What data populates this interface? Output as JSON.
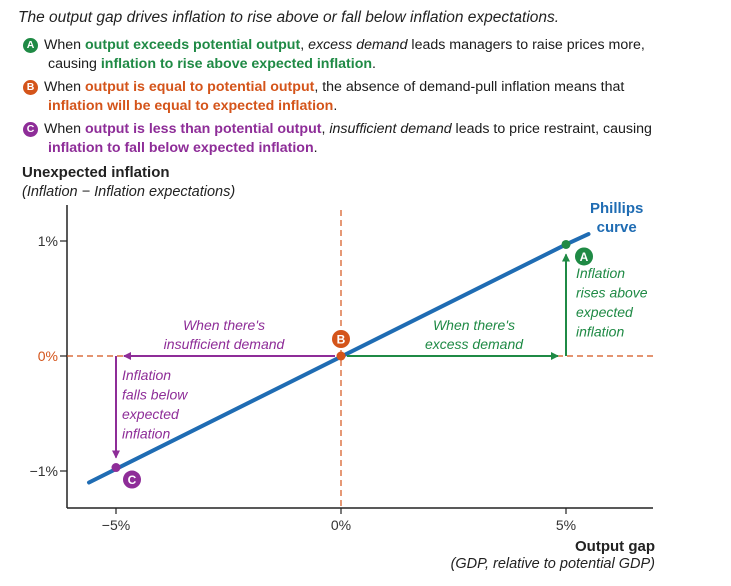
{
  "title": "The output gap drives inflation to rise above or fall below inflation expectations.",
  "explanations": [
    {
      "badge": "A",
      "p1": "When ",
      "h1": "output exceeds potential output",
      "p2": ", ",
      "e1": "excess demand",
      "p3": " leads managers to raise prices more,",
      "p4": "causing ",
      "h2": "inflation to rise above expected inflation",
      "p5": "."
    },
    {
      "badge": "B",
      "p1": "When ",
      "h1": "output is equal to potential output",
      "p2": ", the absence of demand-pull inflation means that",
      "h2": "inflation will be equal to expected inflation",
      "p3": "."
    },
    {
      "badge": "C",
      "p1": "When ",
      "h1": "output is less than potential output",
      "p2": ", ",
      "e1": "insufficient demand",
      "p3": " leads to price restraint, causing",
      "h2": "inflation to fall below expected inflation",
      "p4": "."
    }
  ],
  "colors": {
    "green": "#1f8a45",
    "orange": "#d4541a",
    "purple": "#8e2d98",
    "curve": "#1f6cb3",
    "axis": "#222222"
  },
  "chart_data": {
    "type": "line",
    "ylabel": "Unexpected inflation",
    "ylabel_sub": "(Inflation − Inflation expectations)",
    "xlabel": "Output gap",
    "xlabel_sub": "(GDP, relative to potential GDP)",
    "x_ticks": [
      "−5%",
      "0%",
      "5%"
    ],
    "y_ticks": [
      "1%",
      "0%",
      "−1%"
    ],
    "xlim": [
      -6.5,
      7
    ],
    "ylim": [
      -1.3,
      1.45
    ],
    "series": [
      {
        "name": "Phillips curve",
        "x": [
          -5.6,
          5.0,
          5.5
        ],
        "y": [
          -1.1,
          0.97,
          1.06
        ]
      }
    ],
    "curve_label": [
      "Phillips",
      "curve"
    ],
    "points": [
      {
        "label": "A",
        "x": 5,
        "y": 0.97
      },
      {
        "label": "B",
        "x": 0,
        "y": 0
      },
      {
        "label": "C",
        "x": -5,
        "y": -0.97
      }
    ],
    "annotations": {
      "excess": [
        "When there's",
        "excess demand"
      ],
      "insufficient": [
        "When there's",
        "insufficient demand"
      ],
      "rise": [
        "Inflation",
        "rises above",
        "expected",
        "inflation"
      ],
      "fall": [
        "Inflation",
        "falls below",
        "expected",
        "inflation"
      ]
    }
  }
}
